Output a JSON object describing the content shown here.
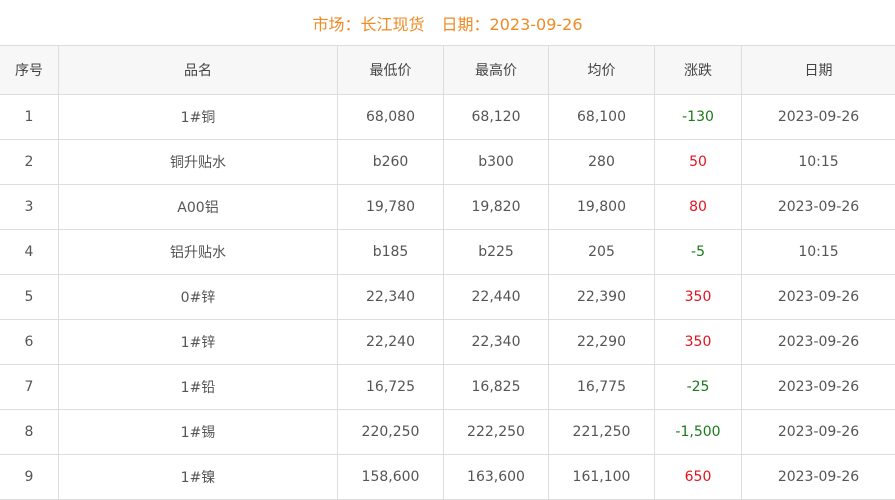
{
  "title": {
    "market": "市场：长江现货",
    "date": "日期：2023-09-26"
  },
  "colors": {
    "title": "#f08a24",
    "up": "#e0141e",
    "down": "#1a7a1a"
  },
  "table": {
    "headers": [
      "序号",
      "品名",
      "最低价",
      "最高价",
      "均价",
      "涨跌",
      "日期"
    ],
    "rows": [
      [
        "1",
        "1#铜",
        "68,080",
        "68,120",
        "68,100",
        "-130",
        "2023-09-26"
      ],
      [
        "2",
        "铜升贴水",
        "b260",
        "b300",
        "280",
        "50",
        "10:15"
      ],
      [
        "3",
        "A00铝",
        "19,780",
        "19,820",
        "19,800",
        "80",
        "2023-09-26"
      ],
      [
        "4",
        "铝升贴水",
        "b185",
        "b225",
        "205",
        "-5",
        "10:15"
      ],
      [
        "5",
        "0#锌",
        "22,340",
        "22,440",
        "22,390",
        "350",
        "2023-09-26"
      ],
      [
        "6",
        "1#锌",
        "22,240",
        "22,340",
        "22,290",
        "350",
        "2023-09-26"
      ],
      [
        "7",
        "1#铅",
        "16,725",
        "16,825",
        "16,775",
        "-25",
        "2023-09-26"
      ],
      [
        "8",
        "1#锡",
        "220,250",
        "222,250",
        "221,250",
        "-1,500",
        "2023-09-26"
      ],
      [
        "9",
        "1#镍",
        "158,600",
        "163,600",
        "161,100",
        "650",
        "2023-09-26"
      ]
    ]
  }
}
